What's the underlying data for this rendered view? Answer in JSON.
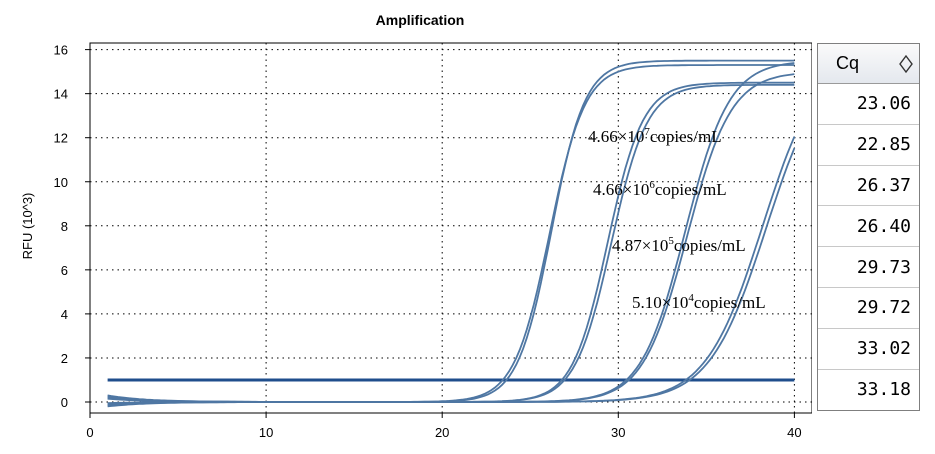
{
  "chart_data": {
    "type": "line",
    "title": "Amplification",
    "xlabel": "",
    "ylabel": "RFU (10^3)",
    "xlim": [
      0,
      41
    ],
    "ylim": [
      -0.5,
      16.3
    ],
    "xticks": [
      0,
      10,
      20,
      30,
      40
    ],
    "yticks": [
      0,
      2,
      4,
      6,
      8,
      10,
      12,
      14,
      16
    ],
    "grid": true,
    "threshold": 1.0,
    "series": [
      {
        "cq": 23.06,
        "plateau": 15.5,
        "midpoint": 26.2,
        "slope": 1.05,
        "start": 0.3
      },
      {
        "cq": 22.85,
        "plateau": 15.3,
        "midpoint": 26.1,
        "slope": 1.0,
        "start": -0.2
      },
      {
        "cq": 26.37,
        "plateau": 14.5,
        "midpoint": 29.4,
        "slope": 1.0,
        "start": 0.25
      },
      {
        "cq": 26.4,
        "plateau": 14.4,
        "midpoint": 29.6,
        "slope": 0.98,
        "start": -0.15
      },
      {
        "cq": 29.73,
        "plateau": 15.5,
        "midpoint": 33.8,
        "slope": 0.8,
        "start": 0.2
      },
      {
        "cq": 29.72,
        "plateau": 15.0,
        "midpoint": 33.9,
        "slope": 0.8,
        "start": -0.1
      },
      {
        "cq": 33.02,
        "plateau": 16.0,
        "midpoint": 38.2,
        "slope": 0.62,
        "start": 0.15
      },
      {
        "cq": 33.18,
        "plateau": 15.8,
        "midpoint": 38.4,
        "slope": 0.62,
        "start": -0.05
      }
    ],
    "annotations": [
      {
        "base": "4.66×10",
        "exp": "7",
        "unit": "copies/mL"
      },
      {
        "base": "4.66×10",
        "exp": "6",
        "unit": "copies/mL"
      },
      {
        "base": "4.87×10",
        "exp": "5",
        "unit": "copies/mL"
      },
      {
        "base": "5.10×10",
        "exp": "4",
        "unit": "copies/mL"
      }
    ]
  },
  "colors": {
    "curve": "#4f77a3",
    "threshold": "#1f4e8c",
    "grid": "#000000"
  },
  "cq_table": {
    "header": "Cq",
    "sort_icon": "sort-diamond-icon",
    "values": [
      "23.06",
      "22.85",
      "26.37",
      "26.40",
      "29.73",
      "29.72",
      "33.02",
      "33.18"
    ]
  }
}
